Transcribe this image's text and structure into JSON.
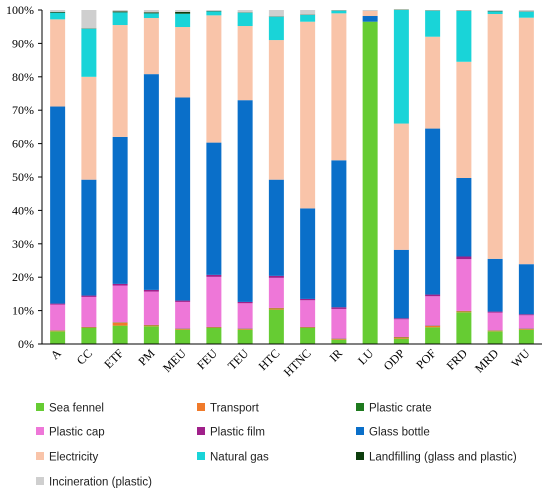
{
  "chart_data": {
    "type": "bar",
    "stacked": true,
    "categories": [
      "A",
      "CC",
      "ETF",
      "PM",
      "MEU",
      "FEU",
      "TEU",
      "HTC",
      "HTNC",
      "IR",
      "LU",
      "ODP",
      "POF",
      "FRD",
      "MRD",
      "WU"
    ],
    "y_tick_labels": [
      "0%",
      "10%",
      "20%",
      "30%",
      "40%",
      "50%",
      "60%",
      "70%",
      "80%",
      "90%",
      "100%"
    ],
    "ylim": [
      0,
      100
    ],
    "grid": false,
    "legend_position": "bottom",
    "series": [
      {
        "name": "Sea fennel",
        "color": "#66CC33",
        "values": [
          3.8,
          4.8,
          5.5,
          5.3,
          4.3,
          4.8,
          4.3,
          10.3,
          4.8,
          1.3,
          96.5,
          1.6,
          5.0,
          9.5,
          3.8,
          4.3
        ]
      },
      {
        "name": "Transport",
        "color": "#F07A2A",
        "values": [
          0.2,
          0.2,
          0.9,
          0.3,
          0.2,
          0.2,
          0.2,
          0.4,
          0.2,
          0.2,
          0.0,
          0.4,
          0.4,
          0.3,
          0.2,
          0.2
        ]
      },
      {
        "name": "Plastic crate",
        "color": "#1E7A1E",
        "values": [
          0.1,
          0.1,
          0.1,
          0.1,
          0.1,
          0.1,
          0.1,
          0.1,
          0.1,
          0.1,
          0.0,
          0.1,
          0.1,
          0.1,
          0.1,
          0.1
        ]
      },
      {
        "name": "Plastic cap",
        "color": "#EE77D8",
        "values": [
          7.7,
          9.0,
          11.0,
          10.0,
          8.0,
          15.0,
          7.6,
          9.0,
          8.0,
          8.9,
          0.0,
          5.3,
          8.8,
          15.5,
          5.3,
          4.0
        ]
      },
      {
        "name": "Plastic film",
        "color": "#A0208A",
        "values": [
          0.3,
          0.4,
          0.5,
          0.5,
          0.4,
          0.6,
          0.4,
          0.6,
          0.4,
          0.5,
          0.0,
          0.3,
          0.5,
          0.8,
          0.3,
          0.3
        ]
      },
      {
        "name": "Glass bottle",
        "color": "#0A6FC9",
        "values": [
          59.0,
          34.7,
          44.0,
          64.6,
          60.8,
          39.6,
          60.4,
          28.8,
          27.1,
          44.0,
          1.7,
          20.5,
          49.7,
          23.5,
          15.8,
          15.0
        ]
      },
      {
        "name": "Electricity",
        "color": "#F9C4A9",
        "values": [
          26.1,
          30.8,
          33.5,
          16.8,
          21.1,
          38.1,
          22.2,
          41.8,
          55.9,
          44.0,
          1.5,
          37.8,
          27.5,
          34.8,
          73.3,
          73.8
        ]
      },
      {
        "name": "Natural gas",
        "color": "#19D4D8",
        "values": [
          2.0,
          14.4,
          3.8,
          1.4,
          4.0,
          1.2,
          4.0,
          7.0,
          2.0,
          0.8,
          0.0,
          34.0,
          7.8,
          15.2,
          0.8,
          1.8
        ]
      },
      {
        "name": "Landfilling (glass and plastic)",
        "color": "#0D3D0D",
        "values": [
          0.2,
          0.1,
          0.3,
          0.3,
          0.5,
          0.1,
          0.1,
          0.1,
          0.1,
          0.1,
          0.0,
          0.1,
          0.1,
          0.1,
          0.1,
          0.1
        ]
      },
      {
        "name": "Incineration (plastic)",
        "color": "#CFCFCF",
        "values": [
          0.6,
          5.5,
          0.4,
          0.7,
          0.6,
          0.3,
          0.7,
          1.9,
          1.4,
          0.1,
          0.3,
          0.0,
          0.1,
          0.2,
          0.3,
          0.4
        ]
      }
    ]
  }
}
